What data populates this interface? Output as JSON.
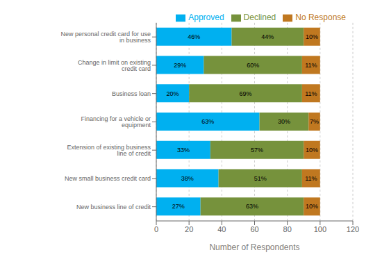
{
  "chart_data": {
    "type": "bar",
    "orientation": "horizontal",
    "stacked": true,
    "categories": [
      "New personal credit card for use in business",
      "Change in limit on existing credit card",
      "Business loan",
      "Financing for a vehicle or equipment",
      "Extension of existing business line of credit",
      "New small business credit card",
      "New business line of credit"
    ],
    "series": [
      {
        "name": "Approved",
        "color": "#00B0F0",
        "values": [
          46,
          29,
          20,
          63,
          33,
          38,
          27
        ],
        "value_labels": [
          "46%",
          "29%",
          "20%",
          "63%",
          "33%",
          "38%",
          "27%"
        ]
      },
      {
        "name": "Declined",
        "color": "#76923C",
        "values": [
          44,
          60,
          69,
          30,
          57,
          51,
          63
        ],
        "value_labels": [
          "44%",
          "60%",
          "69%",
          "30%",
          "57%",
          "51%",
          "63%"
        ]
      },
      {
        "name": "No Response",
        "color": "#C07820",
        "values": [
          10,
          11,
          11,
          7,
          10,
          11,
          10
        ],
        "value_labels": [
          "10%",
          "11%",
          "11%",
          "7%",
          "10%",
          "11%",
          "10%"
        ]
      }
    ],
    "xlabel": "Number of Respondents",
    "xlim": [
      0,
      120
    ],
    "xticks": [
      0,
      20,
      40,
      60,
      80,
      100,
      120
    ],
    "grid": true,
    "legend": "upper right",
    "data_labels": true
  }
}
